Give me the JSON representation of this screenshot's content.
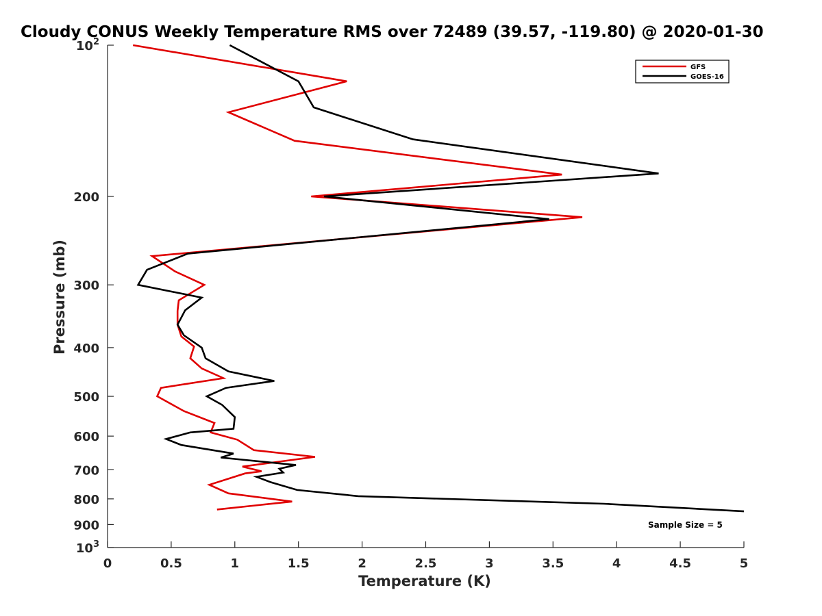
{
  "chart_data": {
    "type": "line",
    "orientation": "vertical-profile",
    "title": "Cloudy CONUS Weekly Temperature RMS over 72489 (39.57, -119.80) @ 2020-01-30",
    "xlabel": "Temperature (K)",
    "ylabel": "Pressure (mb)",
    "xlim": [
      0,
      5
    ],
    "ylim": [
      100,
      1000
    ],
    "y_scale": "log",
    "y_reversed": true,
    "x_ticks": [
      0,
      0.5,
      1,
      1.5,
      2,
      2.5,
      3,
      3.5,
      4,
      4.5,
      5
    ],
    "x_tick_labels": [
      "0",
      "0.5",
      "1",
      "1.5",
      "2",
      "2.5",
      "3",
      "3.5",
      "4",
      "4.5",
      "5"
    ],
    "y_ticks": [
      {
        "value": 100,
        "base": "10",
        "exp": "2"
      },
      {
        "value": 200,
        "label": "200"
      },
      {
        "value": 300,
        "label": "300"
      },
      {
        "value": 400,
        "label": "400"
      },
      {
        "value": 500,
        "label": "500"
      },
      {
        "value": 600,
        "label": "600"
      },
      {
        "value": 700,
        "label": "700"
      },
      {
        "value": 800,
        "label": "800"
      },
      {
        "value": 900,
        "label": "900"
      },
      {
        "value": 1000,
        "base": "10",
        "exp": "3"
      }
    ],
    "grid": false,
    "legend_position": "top-right",
    "annotation": "Sample Size = 5",
    "series": [
      {
        "name": "GFS",
        "color": "#e00000",
        "points": [
          [
            0.2,
            100
          ],
          [
            1.88,
            118
          ],
          [
            0.95,
            136
          ],
          [
            1.47,
            155
          ],
          [
            3.57,
            181
          ],
          [
            1.6,
            200
          ],
          [
            3.73,
            220
          ],
          [
            0.35,
            263
          ],
          [
            0.53,
            282
          ],
          [
            0.76,
            300
          ],
          [
            0.56,
            322
          ],
          [
            0.55,
            338
          ],
          [
            0.55,
            360
          ],
          [
            0.58,
            380
          ],
          [
            0.68,
            398
          ],
          [
            0.65,
            420
          ],
          [
            0.74,
            440
          ],
          [
            0.91,
            460
          ],
          [
            0.42,
            481
          ],
          [
            0.39,
            500
          ],
          [
            0.6,
            535
          ],
          [
            0.84,
            565
          ],
          [
            0.81,
            590
          ],
          [
            1.02,
            610
          ],
          [
            1.15,
            640
          ],
          [
            1.63,
            660
          ],
          [
            1.06,
            690
          ],
          [
            1.21,
            705
          ],
          [
            1.08,
            712
          ],
          [
            0.8,
            750
          ],
          [
            0.95,
            780
          ],
          [
            1.45,
            810
          ],
          [
            0.86,
            840
          ]
        ]
      },
      {
        "name": "GOES-16",
        "color": "#000000",
        "points": [
          [
            0.96,
            100
          ],
          [
            1.5,
            118
          ],
          [
            1.62,
            133
          ],
          [
            2.4,
            154
          ],
          [
            4.33,
            180
          ],
          [
            1.7,
            200
          ],
          [
            3.47,
            222
          ],
          [
            0.63,
            260
          ],
          [
            0.31,
            280
          ],
          [
            0.24,
            300
          ],
          [
            0.74,
            318
          ],
          [
            0.61,
            337
          ],
          [
            0.55,
            360
          ],
          [
            0.6,
            378
          ],
          [
            0.74,
            400
          ],
          [
            0.77,
            420
          ],
          [
            0.95,
            446
          ],
          [
            1.31,
            466
          ],
          [
            0.93,
            481
          ],
          [
            0.78,
            500
          ],
          [
            0.9,
            520
          ],
          [
            1.0,
            550
          ],
          [
            0.99,
            580
          ],
          [
            0.65,
            590
          ],
          [
            0.46,
            608
          ],
          [
            0.58,
            625
          ],
          [
            0.99,
            650
          ],
          [
            0.89,
            662
          ],
          [
            1.48,
            685
          ],
          [
            1.35,
            697
          ],
          [
            1.38,
            709
          ],
          [
            1.17,
            723
          ],
          [
            1.28,
            741
          ],
          [
            1.49,
            768
          ],
          [
            1.97,
            790
          ],
          [
            3.9,
            818
          ],
          [
            5.0,
            847
          ]
        ]
      }
    ]
  }
}
